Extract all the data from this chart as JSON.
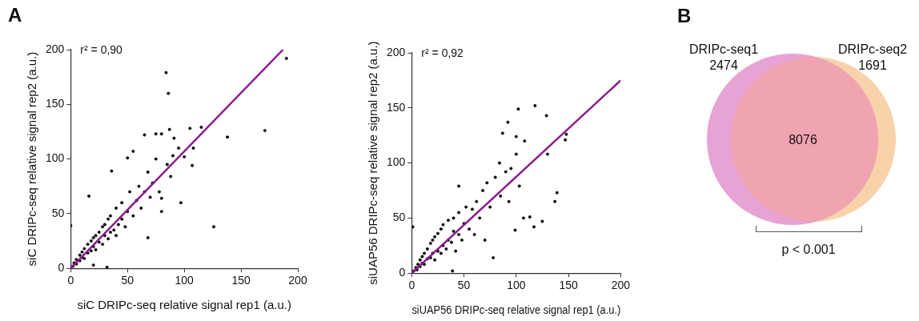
{
  "chart_data": [
    {
      "type": "scatter",
      "xlabel": "siC DRIPc-seq relative signal rep1 (a.u.)",
      "ylabel": "siC DRIPc-seq relative signal rep2 (a.u.)",
      "xlim": [
        0,
        200
      ],
      "ylim": [
        0,
        200
      ],
      "xticks": [
        0,
        50,
        100,
        150,
        200
      ],
      "yticks": [
        0,
        50,
        100,
        150,
        200
      ],
      "marker": "circle",
      "annotations": [
        "A",
        "r² = 0,90"
      ],
      "series": [
        {
          "type": "scatter",
          "color": "#000000",
          "x": [
            190,
            84,
            86,
            87,
            171,
            138,
            105,
            115,
            65,
            75,
            80,
            91,
            126,
            97,
            107,
            36,
            16,
            0,
            80,
            68,
            55,
            50,
            32,
            20,
            2,
            3,
            5,
            5,
            8,
            8,
            10,
            10,
            12,
            12,
            15,
            15,
            18,
            18,
            20,
            20,
            22,
            22,
            25,
            25,
            28,
            28,
            30,
            30,
            33,
            33,
            35,
            35,
            38,
            40,
            40,
            42,
            45,
            45,
            48,
            50,
            52,
            55,
            58,
            60,
            62,
            65,
            68,
            70,
            72,
            75,
            78,
            80,
            85,
            88,
            90,
            95,
            100,
            108
          ],
          "values": [
            192,
            179,
            160,
            127,
            126,
            120,
            128,
            129,
            122,
            123,
            123,
            119,
            38,
            60,
            94,
            89,
            66,
            39,
            52,
            28,
            107,
            101,
            1,
            3,
            2,
            5,
            4,
            8,
            7,
            12,
            10,
            15,
            9,
            18,
            14,
            22,
            16,
            25,
            20,
            28,
            17,
            30,
            24,
            33,
            22,
            38,
            30,
            40,
            27,
            45,
            33,
            48,
            35,
            30,
            55,
            40,
            45,
            60,
            38,
            52,
            70,
            48,
            62,
            75,
            55,
            70,
            88,
            65,
            78,
            100,
            70,
            64,
            95,
            84,
            103,
            110,
            102,
            110
          ]
        },
        {
          "type": "line",
          "color": "#8b1a8b",
          "marker": "none",
          "x": [
            0,
            187
          ],
          "values": [
            0,
            200
          ]
        }
      ]
    },
    {
      "type": "scatter",
      "xlabel": "siUAP56 DRIPc-seq relative signal rep1 (a.u.)",
      "ylabel": "siUAP56 DRIPc-seq relative signal rep2 (a.u.)",
      "xlim": [
        0,
        200
      ],
      "ylim": [
        0,
        200
      ],
      "xticks": [
        0,
        50,
        100,
        150,
        200
      ],
      "yticks": [
        0,
        50,
        100,
        150,
        200
      ],
      "marker": "circle",
      "annotations": [
        "r² = 0,92"
      ],
      "series": [
        {
          "type": "scatter",
          "color": "#000000",
          "x": [
            118,
            102,
            129,
            92,
            87,
            100,
            148,
            147,
            108,
            130,
            100,
            84,
            139,
            137,
            113,
            125,
            117,
            99,
            78,
            39,
            1,
            45,
            103,
            107,
            93,
            2,
            4,
            5,
            6,
            8,
            8,
            10,
            10,
            12,
            12,
            15,
            15,
            18,
            18,
            20,
            20,
            22,
            22,
            25,
            25,
            28,
            28,
            30,
            30,
            33,
            35,
            35,
            38,
            40,
            40,
            42,
            45,
            45,
            48,
            50,
            52,
            55,
            58,
            60,
            62,
            65,
            68,
            70,
            72,
            75,
            80,
            85,
            90,
            95
          ],
          "values": [
            152,
            149,
            143,
            137,
            127,
            124,
            126,
            121,
            120,
            108,
            108,
            100,
            73,
            65,
            51,
            47,
            42,
            39,
            14,
            2,
            42,
            79,
            79,
            50,
            65,
            2,
            5,
            3,
            8,
            6,
            12,
            9,
            15,
            8,
            18,
            13,
            22,
            14,
            27,
            18,
            30,
            12,
            33,
            20,
            36,
            18,
            40,
            25,
            44,
            22,
            30,
            48,
            28,
            38,
            50,
            20,
            35,
            55,
            30,
            45,
            60,
            40,
            58,
            35,
            65,
            50,
            75,
            30,
            82,
            60,
            87,
            70,
            92,
            95
          ]
        },
        {
          "type": "line",
          "color": "#8b1a8b",
          "marker": "none",
          "x": [
            0,
            200
          ],
          "values": [
            0,
            175
          ]
        }
      ]
    },
    {
      "type": "other",
      "data_labels": true,
      "categories": [
        "DRIPc-seq1",
        "DRIPc-seq2",
        null
      ],
      "values": [
        2474,
        1691,
        8076
      ],
      "colors": [
        "#e7a3d3",
        "#f8d2a9",
        "#f0a3b0"
      ],
      "annotations": [
        "B",
        "p < 0.001"
      ]
    }
  ]
}
